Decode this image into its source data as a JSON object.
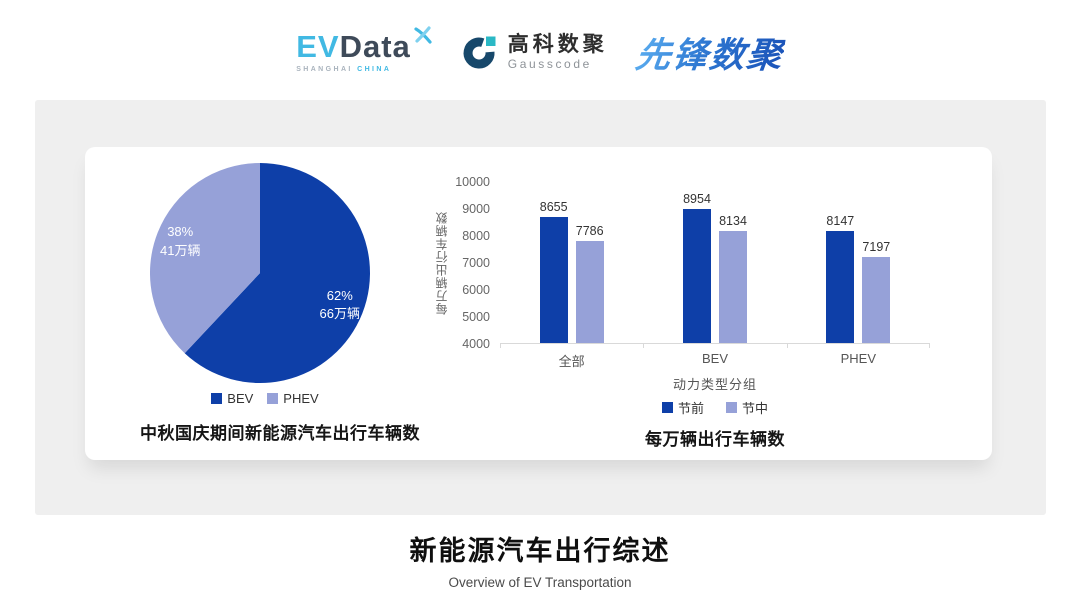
{
  "header": {
    "evdata": {
      "ev": "EV",
      "data": "Data",
      "sub_left": "SHANGHAI",
      "sub_right": "CHINA"
    },
    "gausscode": {
      "cn": "高科数聚",
      "en": "Gausscode"
    },
    "pioneer": {
      "text": "先锋数聚"
    }
  },
  "colors": {
    "series_dark_blue": "#0E3FA8",
    "series_light_periwinkle": "#96A1D8",
    "panel_gray": "#EFEFEF",
    "axis_line": "#D9D9D9"
  },
  "chart_data": [
    {
      "type": "pie",
      "title": "中秋国庆期间新能源汽车出行车辆数",
      "legend_position": "bottom",
      "start_angle": "top, clockwise",
      "slices": [
        {
          "label": "BEV",
          "percent": 62,
          "value_label": "66万辆",
          "color": "#0E3FA8"
        },
        {
          "label": "PHEV",
          "percent": 38,
          "value_label": "41万辆",
          "color": "#96A1D8"
        }
      ]
    },
    {
      "type": "bar",
      "title": "每万辆出行车辆数",
      "categories": [
        "全部",
        "BEV",
        "PHEV"
      ],
      "series": [
        {
          "name": "节前",
          "values": [
            8655,
            8954,
            8147
          ],
          "color": "#0E3FA8"
        },
        {
          "name": "节中",
          "values": [
            7786,
            8134,
            7197
          ],
          "color": "#96A1D8"
        }
      ],
      "xlabel": "动力类型分组",
      "ylabel": "每万辆出行车辆数",
      "ylim": [
        4000,
        10000
      ],
      "ytick_step": 1000,
      "grid": false,
      "legend_position": "bottom"
    }
  ],
  "footer": {
    "title": "新能源汽车出行综述",
    "subtitle": "Overview of EV Transportation"
  }
}
